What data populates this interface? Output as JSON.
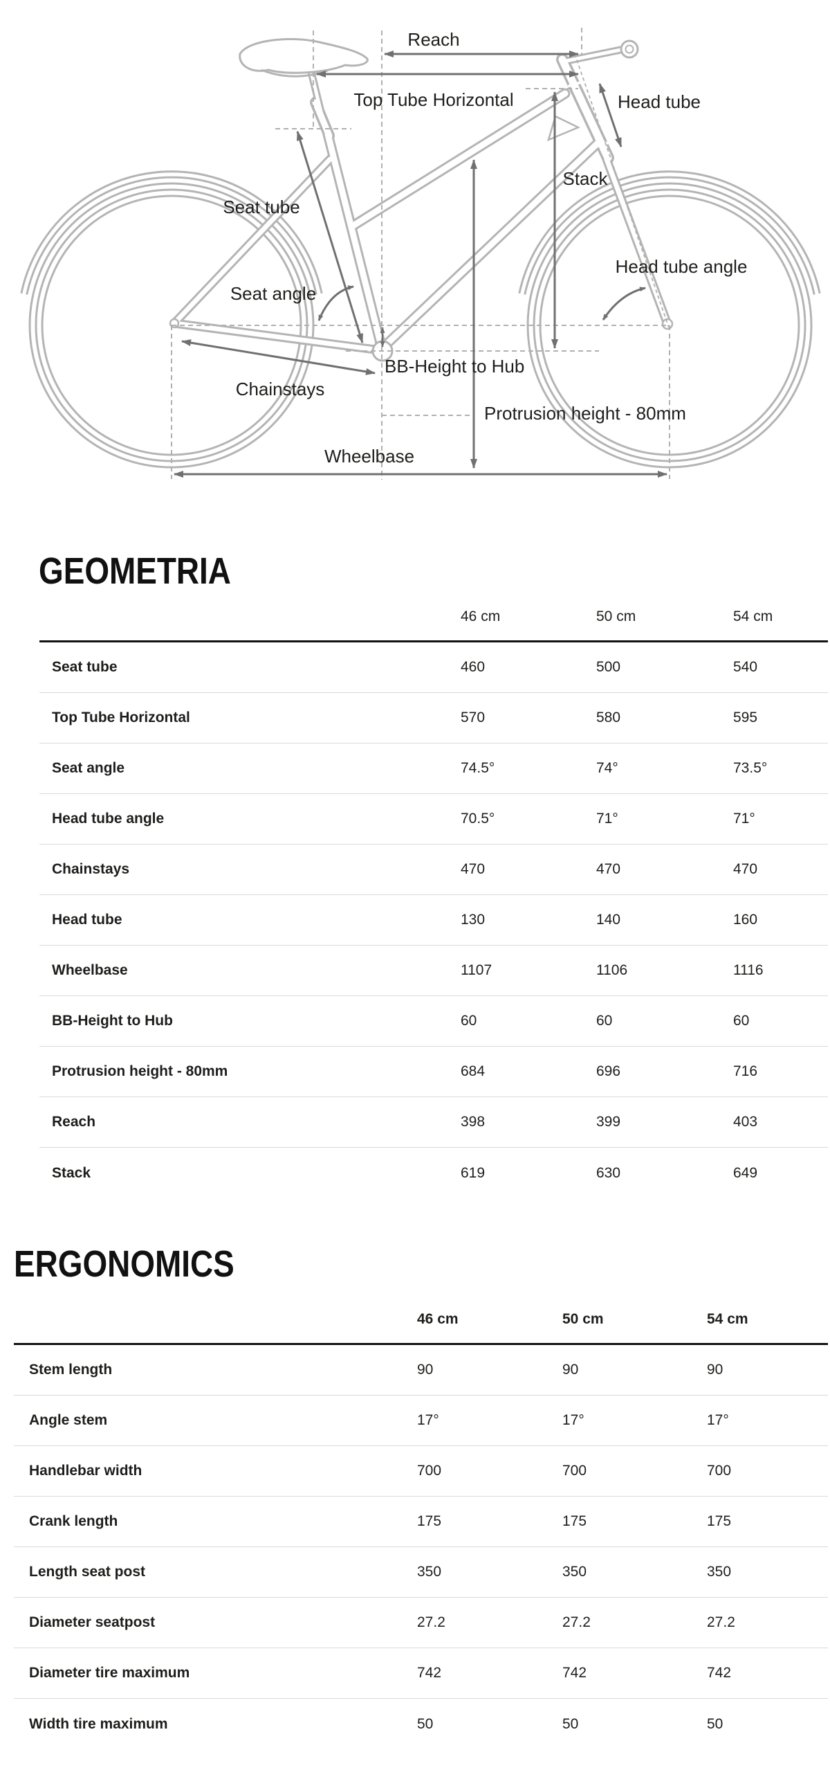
{
  "diagram": {
    "labels": {
      "reach": "Reach",
      "top_tube_horizontal": "Top Tube Horizontal",
      "head_tube": "Head tube",
      "seat_tube": "Seat tube",
      "stack": "Stack",
      "head_tube_angle": "Head tube angle",
      "seat_angle": "Seat angle",
      "bb_height_to_hub": "BB-Height to Hub",
      "chainstays": "Chainstays",
      "protrusion_height": "Protrusion height - 80mm",
      "wheelbase": "Wheelbase"
    },
    "colors": {
      "frame": "#b4b4b4",
      "dimension_arrows": "#707070",
      "dashed_reference": "#b0b0b0",
      "label_text": "#1d1d1b"
    }
  },
  "sections": [
    {
      "id": "geometria",
      "title": "GEOMETRIA",
      "columns": [
        "46 cm",
        "50 cm",
        "54 cm"
      ],
      "rows": [
        {
          "label": "Seat tube",
          "values": [
            "460",
            "500",
            "540"
          ]
        },
        {
          "label": "Top Tube Horizontal",
          "values": [
            "570",
            "580",
            "595"
          ]
        },
        {
          "label": "Seat angle",
          "values": [
            "74.5°",
            "74°",
            "73.5°"
          ]
        },
        {
          "label": "Head tube angle",
          "values": [
            "70.5°",
            "71°",
            "71°"
          ]
        },
        {
          "label": "Chainstays",
          "values": [
            "470",
            "470",
            "470"
          ]
        },
        {
          "label": "Head tube",
          "values": [
            "130",
            "140",
            "160"
          ]
        },
        {
          "label": "Wheelbase",
          "values": [
            "1107",
            "1106",
            "1116"
          ]
        },
        {
          "label": "BB-Height to Hub",
          "values": [
            "60",
            "60",
            "60"
          ]
        },
        {
          "label": "Protrusion height - 80mm",
          "values": [
            "684",
            "696",
            "716"
          ]
        },
        {
          "label": "Reach",
          "values": [
            "398",
            "399",
            "403"
          ]
        },
        {
          "label": "Stack",
          "values": [
            "619",
            "630",
            "649"
          ]
        }
      ]
    },
    {
      "id": "ergonomics",
      "title": "ERGONOMICS",
      "columns": [
        "46 cm",
        "50 cm",
        "54 cm"
      ],
      "rows": [
        {
          "label": "Stem length",
          "values": [
            "90",
            "90",
            "90"
          ]
        },
        {
          "label": "Angle stem",
          "values": [
            "17°",
            "17°",
            "17°"
          ]
        },
        {
          "label": "Handlebar width",
          "values": [
            "700",
            "700",
            "700"
          ]
        },
        {
          "label": "Crank length",
          "values": [
            "175",
            "175",
            "175"
          ]
        },
        {
          "label": "Length seat post",
          "values": [
            "350",
            "350",
            "350"
          ]
        },
        {
          "label": "Diameter seatpost",
          "values": [
            "27.2",
            "27.2",
            "27.2"
          ]
        },
        {
          "label": "Diameter tire maximum",
          "values": [
            "742",
            "742",
            "742"
          ]
        },
        {
          "label": "Width tire maximum",
          "values": [
            "50",
            "50",
            "50"
          ]
        }
      ]
    }
  ]
}
